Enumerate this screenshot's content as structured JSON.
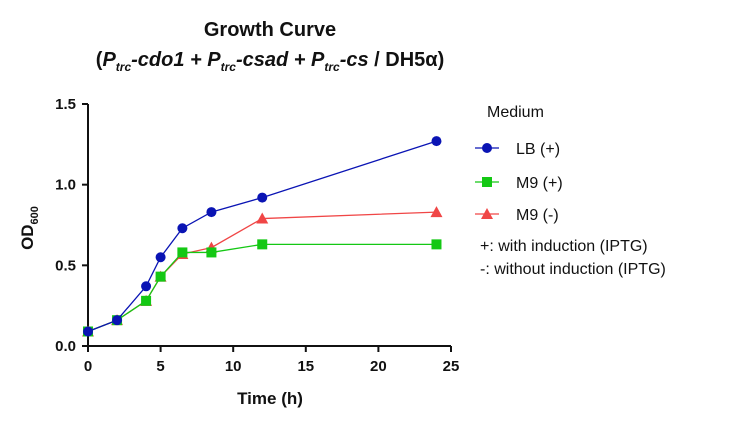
{
  "chart_data": {
    "type": "line",
    "title_line1": "Growth Curve",
    "title_line2_parts": [
      {
        "text": "(",
        "style": "normal"
      },
      {
        "text": "P",
        "style": "italic"
      },
      {
        "text": "trc",
        "style": "italic-sub"
      },
      {
        "text": "-cdo1 + ",
        "style": "italic"
      },
      {
        "text": "P",
        "style": "italic"
      },
      {
        "text": "trc",
        "style": "italic-sub"
      },
      {
        "text": "-csad + ",
        "style": "italic"
      },
      {
        "text": "P",
        "style": "italic"
      },
      {
        "text": "trc",
        "style": "italic-sub"
      },
      {
        "text": "-cs",
        "style": "italic"
      },
      {
        "text": " / DH5α)",
        "style": "normal"
      }
    ],
    "xlabel": "Time (h)",
    "ylabel": "OD",
    "ylabel_sub": "600",
    "xlim": [
      0,
      25
    ],
    "ylim": [
      0,
      1.5
    ],
    "xticks": [
      0,
      5,
      10,
      15,
      20,
      25
    ],
    "xtick_labels": [
      "0",
      "5",
      "10",
      "15",
      "20",
      "25"
    ],
    "yticks": [
      0,
      0.5,
      1.0,
      1.5
    ],
    "ytick_labels": [
      "0.0",
      "0.5",
      "1.0",
      "1.5"
    ],
    "grid": false,
    "legend": {
      "title": "Medium",
      "placement": "right"
    },
    "annotations": [
      "+: with induction (IPTG)",
      "-: without induction (IPTG)"
    ],
    "series": [
      {
        "name": "LB (+)",
        "color": "#0a14b4",
        "marker": "circle",
        "x": [
          0,
          2,
          4,
          5,
          6.5,
          8.5,
          12,
          24
        ],
        "y": [
          0.09,
          0.16,
          0.37,
          0.55,
          0.73,
          0.83,
          0.92,
          1.27
        ]
      },
      {
        "name": "M9 (+)",
        "color": "#14c814",
        "marker": "square",
        "x": [
          0,
          2,
          4,
          5,
          6.5,
          8.5,
          12,
          24
        ],
        "y": [
          0.09,
          0.16,
          0.28,
          0.43,
          0.58,
          0.58,
          0.63,
          0.63
        ]
      },
      {
        "name": "M9 (-)",
        "color": "#f04646",
        "marker": "triangle",
        "x": [
          0,
          2,
          4,
          5,
          6.5,
          8.5,
          12,
          24
        ],
        "y": [
          0.09,
          0.16,
          0.28,
          0.43,
          0.57,
          0.61,
          0.79,
          0.83
        ]
      }
    ]
  }
}
